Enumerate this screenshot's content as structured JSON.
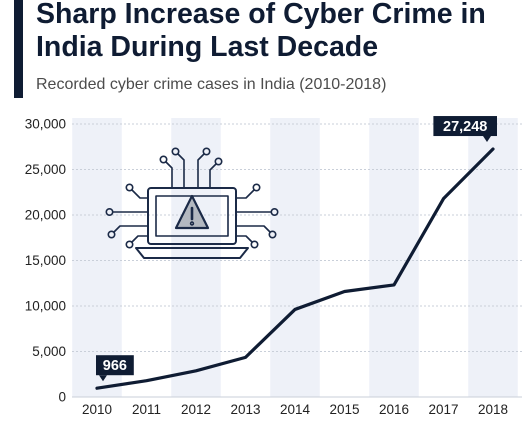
{
  "header": {
    "title": "Sharp Increase of Cyber Crime in India During Last Decade",
    "subtitle": "Recorded cyber crime cases in India (2010-2018)"
  },
  "colors": {
    "line": "#0f1c33",
    "callout_bg": "#0f1c33",
    "band": "#eef1f8",
    "grid": "#c9cfd9",
    "icon_stroke": "#1b2a47",
    "icon_fill": "#b3b8c0"
  },
  "chart_data": {
    "type": "line",
    "categories": [
      "2010",
      "2011",
      "2012",
      "2013",
      "2014",
      "2015",
      "2016",
      "2017",
      "2018"
    ],
    "values": [
      966,
      1791,
      2876,
      4356,
      9622,
      11592,
      12317,
      21796,
      27248
    ],
    "yticks": [
      "0",
      "5,000",
      "10,000",
      "15,000",
      "20,000",
      "25,000",
      "30,000"
    ],
    "ylim": [
      0,
      30000
    ],
    "grid": true,
    "annotations": [
      {
        "category": "2010",
        "text": "966"
      },
      {
        "category": "2018",
        "text": "27,248"
      }
    ],
    "icon": "laptop-warning-icon"
  }
}
